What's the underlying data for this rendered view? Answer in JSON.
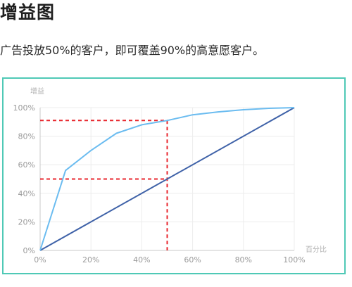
{
  "page": {
    "heading": "增益图",
    "description": "广告投放50%的客户，即可覆盖90%的高意愿客户。"
  },
  "chart_data": {
    "type": "line",
    "xlabel": "百分比",
    "ylabel": "增益",
    "xlim": [
      0,
      100
    ],
    "ylim": [
      0,
      100
    ],
    "x_ticks": [
      "0%",
      "20%",
      "40%",
      "60%",
      "80%",
      "100%"
    ],
    "y_ticks": [
      "0%",
      "20%",
      "40%",
      "60%",
      "80%",
      "100%"
    ],
    "grid": true,
    "legend": "none",
    "series": [
      {
        "color": "#6bbcf0",
        "x": [
          0,
          10,
          20,
          30,
          40,
          50,
          60,
          70,
          80,
          90,
          100
        ],
        "y": [
          0,
          56,
          70,
          82,
          88,
          91,
          95,
          97,
          98.5,
          99.5,
          100
        ]
      },
      {
        "color": "#3f62a8",
        "x": [
          0,
          100
        ],
        "y": [
          0,
          100
        ]
      }
    ],
    "reference_lines": {
      "color": "#e8262d",
      "x": 50,
      "y_low": 50,
      "y_high": 91
    }
  }
}
